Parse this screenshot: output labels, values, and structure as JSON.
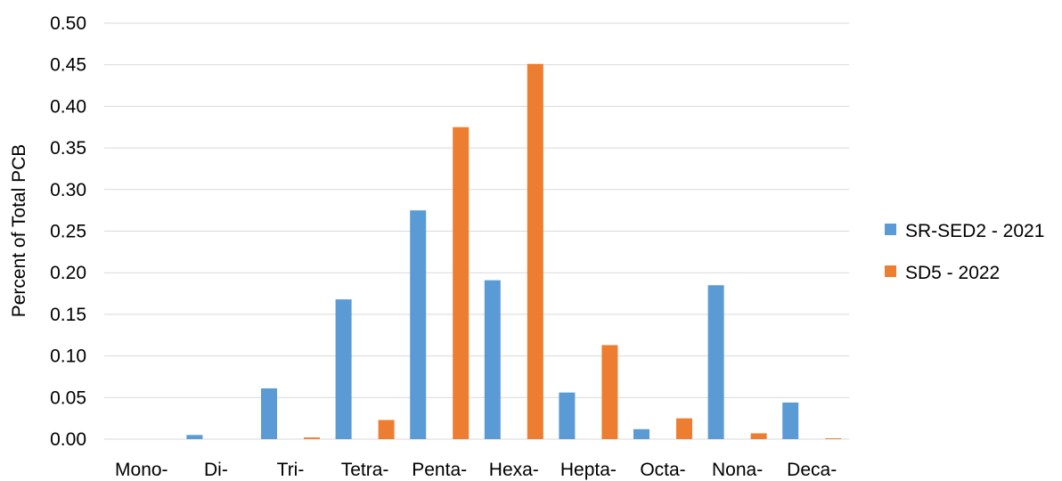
{
  "chart_data": {
    "type": "bar",
    "title": "",
    "xlabel": "",
    "ylabel": "Percent of Total PCB",
    "categories": [
      "Mono-",
      "Di-",
      "Tri-",
      "Tetra-",
      "Penta-",
      "Hexa-",
      "Hepta-",
      "Octa-",
      "Nona-",
      "Deca-"
    ],
    "series": [
      {
        "name": "SR-SED2 - 2021",
        "color": "#5B9BD5",
        "values": [
          0.0,
          0.005,
          0.061,
          0.168,
          0.275,
          0.191,
          0.056,
          0.012,
          0.185,
          0.044
        ]
      },
      {
        "name": "SD5 - 2022",
        "color": "#ED7D31",
        "values": [
          0.0,
          0.0,
          0.002,
          0.023,
          0.375,
          0.451,
          0.113,
          0.025,
          0.007,
          0.001
        ]
      }
    ],
    "ylim": [
      0,
      0.5
    ],
    "yticks": [
      "0.00",
      "0.05",
      "0.10",
      "0.15",
      "0.20",
      "0.25",
      "0.30",
      "0.35",
      "0.40",
      "0.45",
      "0.50"
    ],
    "grid": true,
    "legend_position": "right",
    "gridline_color": "#D9D9D9"
  }
}
